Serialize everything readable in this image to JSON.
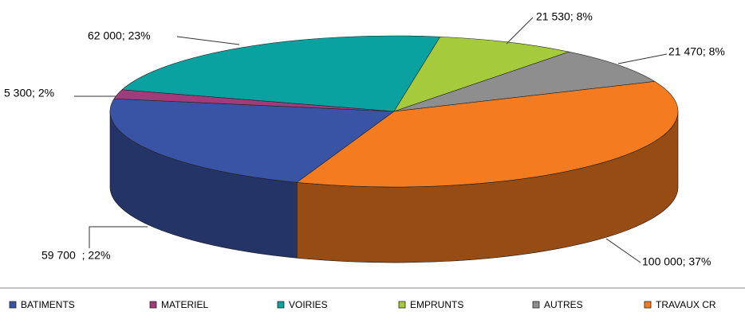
{
  "chart_data": {
    "type": "pie3d",
    "categories": [
      "BATIMENTS",
      "MATERIEL",
      "VOIRIES",
      "EMPRUNTS",
      "AUTRES",
      "TRAVAUX CR"
    ],
    "values": [
      59700,
      5300,
      62000,
      21530,
      21470,
      100000
    ],
    "value_labels": [
      "59 700  ; 22%",
      "5 300; 2%",
      "62 000; 23%",
      "21 530; 8%",
      "21 470; 8%",
      "100 000; 37%"
    ],
    "colors": [
      "#3a54a5",
      "#a03c7c",
      "#0aa1a1",
      "#a5ca3c",
      "#8e8e8e",
      "#f47b20"
    ],
    "legend": "bottom"
  }
}
